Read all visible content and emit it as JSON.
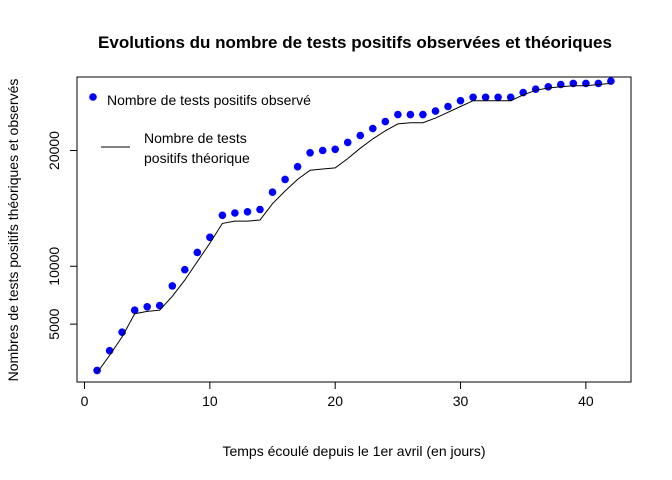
{
  "chart_data": {
    "type": "scatter",
    "title": "Evolutions du nombre de tests positifs observées et théoriques",
    "xlabel": "Temps écoulé depuis le 1er avril (en jours)",
    "ylabel": "Nombres de tests positifs théoriques et observés",
    "xlim": [
      -0.6,
      43.6
    ],
    "ylim": [
      0,
      26350
    ],
    "x_ticks": [
      0,
      10,
      20,
      30,
      40
    ],
    "y_ticks": [
      5000,
      10000,
      20000
    ],
    "legend": {
      "position": "top-left",
      "entries": [
        {
          "label": "Nombre de tests positifs observé",
          "kind": "point"
        },
        {
          "label_lines": [
            "Nombre de tests",
            "positifs théorique"
          ],
          "kind": "line"
        }
      ]
    },
    "series": [
      {
        "name": "Nombre de tests positifs observé",
        "kind": "points",
        "color": "#0000ff",
        "x": [
          1,
          2,
          3,
          4,
          5,
          6,
          7,
          8,
          9,
          10,
          11,
          12,
          13,
          14,
          15,
          16,
          17,
          18,
          19,
          20,
          21,
          22,
          23,
          24,
          25,
          26,
          27,
          28,
          29,
          30,
          31,
          32,
          33,
          34,
          35,
          36,
          37,
          38,
          39,
          40,
          41,
          42
        ],
        "y": [
          1000,
          2700,
          4300,
          6200,
          6500,
          6600,
          8300,
          9700,
          11200,
          12500,
          14400,
          14600,
          14700,
          14900,
          16400,
          17500,
          18600,
          19800,
          20000,
          20100,
          20700,
          21300,
          21900,
          22500,
          23100,
          23100,
          23100,
          23400,
          23800,
          24300,
          24600,
          24600,
          24600,
          24600,
          25000,
          25300,
          25500,
          25700,
          25800,
          25800,
          25800,
          26000
        ]
      },
      {
        "name": "Nombre de tests positifs théorique",
        "kind": "line",
        "color": "#000000",
        "x": [
          1,
          2,
          3,
          4,
          5,
          6,
          7,
          8,
          9,
          10,
          11,
          12,
          13,
          14,
          15,
          16,
          17,
          18,
          19,
          20,
          21,
          22,
          23,
          24,
          25,
          26,
          27,
          28,
          29,
          30,
          31,
          32,
          33,
          34,
          35,
          36,
          37,
          38,
          39,
          40,
          41,
          42
        ],
        "y": [
          800,
          2300,
          3900,
          5900,
          6100,
          6200,
          7400,
          8800,
          10400,
          12000,
          13700,
          13900,
          13900,
          14000,
          15400,
          16500,
          17500,
          18300,
          18400,
          18500,
          19300,
          20200,
          21000,
          21700,
          22300,
          22400,
          22400,
          22800,
          23300,
          23800,
          24300,
          24300,
          24300,
          24300,
          24800,
          25200,
          25400,
          25500,
          25600,
          25600,
          25700,
          25800
        ]
      }
    ]
  }
}
